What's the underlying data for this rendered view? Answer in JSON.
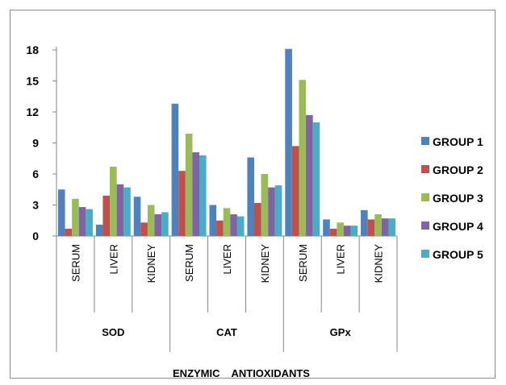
{
  "chart_data": {
    "type": "bar",
    "title": "",
    "ylabel": "",
    "xlabel": "ENZYMIC    ANTIOXIDANTS",
    "ylim": [
      0,
      18
    ],
    "yticks": [
      "0",
      "3",
      "6",
      "9",
      "12",
      "15",
      "18"
    ],
    "grid": false,
    "legend_position": "right",
    "groups": [
      "SOD",
      "CAT",
      "GPx"
    ],
    "categories": [
      "SERUM",
      "LIVER",
      "KIDNEY",
      "SERUM",
      "LIVER",
      "KIDNEY",
      "SERUM",
      "LIVER",
      "KIDNEY"
    ],
    "series": [
      {
        "name": "GROUP 1",
        "color": "#4F81BD",
        "values": [
          4.5,
          1.1,
          3.8,
          12.8,
          3.0,
          7.6,
          18.1,
          1.6,
          2.5
        ]
      },
      {
        "name": "GROUP 2",
        "color": "#C0504D",
        "values": [
          0.7,
          3.9,
          1.3,
          6.3,
          1.5,
          3.2,
          8.7,
          0.7,
          1.6
        ]
      },
      {
        "name": "GROUP 3",
        "color": "#9BBB59",
        "values": [
          3.6,
          6.7,
          3.0,
          9.9,
          2.7,
          6.0,
          15.1,
          1.3,
          2.1
        ]
      },
      {
        "name": "GROUP 4",
        "color": "#8064A2",
        "values": [
          2.8,
          5.0,
          2.1,
          8.1,
          2.1,
          4.7,
          11.7,
          1.0,
          1.7
        ]
      },
      {
        "name": "GROUP 5",
        "color": "#4BACC6",
        "values": [
          2.6,
          4.7,
          2.3,
          7.8,
          1.9,
          4.9,
          11.0,
          1.0,
          1.7
        ]
      }
    ]
  }
}
